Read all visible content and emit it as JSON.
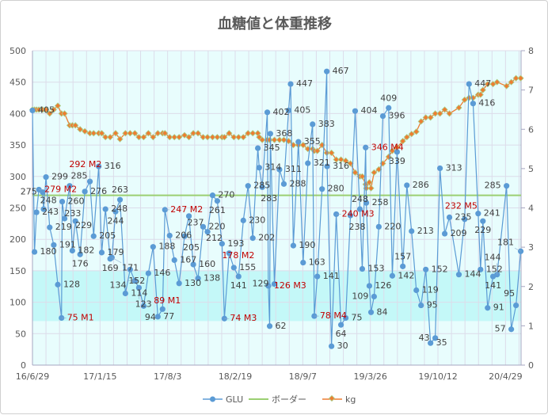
{
  "chart_data": {
    "type": "line",
    "title": "血糖値と体重推移",
    "x_range": [
      "2016-06-29",
      "2020-06-14"
    ],
    "x_ticks": [
      "16/6/29",
      "17/1/15",
      "17/8/3",
      "18/2/19",
      "18/9/7",
      "19/3/26",
      "19/10/12",
      "20/4/29"
    ],
    "x_tick_dates": [
      "2016-06-29",
      "2017-01-15",
      "2017-08-03",
      "2018-02-19",
      "2018-09-07",
      "2019-03-26",
      "2019-10-12",
      "2020-04-29"
    ],
    "y_left": {
      "range": [
        0,
        500
      ],
      "ticks": [
        "0",
        "50",
        "100",
        "150",
        "200",
        "250",
        "300",
        "350",
        "400",
        "450",
        "500"
      ]
    },
    "y_right": {
      "range": [
        0,
        8
      ],
      "ticks": [
        "0",
        "1",
        "2",
        "3",
        "4",
        "5",
        "6",
        "7",
        "8"
      ]
    },
    "grid": true,
    "legend_position": "bottom",
    "target_band": [
      70,
      150
    ],
    "colors": {
      "glu": "#5b9bd5",
      "border": "#9bcf72",
      "kg": "#ed7d31",
      "note": "#c00000",
      "plot_bg": "#e8fdfd",
      "band": "#c4f8f8"
    },
    "series": [
      {
        "name": "GLU",
        "axis": "left",
        "x": [
          "2016-06-29",
          "2016-07-05",
          "2016-07-11",
          "2016-07-18",
          "2016-07-29",
          "2016-08-01",
          "2016-08-08",
          "2016-08-19",
          "2016-08-31",
          "2016-09-12",
          "2016-09-23",
          "2016-09-25",
          "2016-10-02",
          "2016-10-17",
          "2016-10-25",
          "2016-11-03",
          "2016-11-17",
          "2016-12-01",
          "2016-12-16",
          "2016-12-27",
          "2017-01-11",
          "2017-01-20",
          "2017-01-31",
          "2017-02-14",
          "2017-02-19",
          "2017-03-02",
          "2017-03-15",
          "2017-03-31",
          "2017-04-14",
          "2017-04-28",
          "2017-05-10",
          "2017-05-24",
          "2017-06-07",
          "2017-06-21",
          "2017-07-05",
          "2017-07-19",
          "2017-07-26",
          "2017-08-09",
          "2017-08-23",
          "2017-09-06",
          "2017-09-22",
          "2017-10-05",
          "2017-10-18",
          "2017-11-01",
          "2017-11-16",
          "2017-11-29",
          "2017-12-14",
          "2017-12-28",
          "2018-01-11",
          "2018-01-18",
          "2018-02-01",
          "2018-02-15",
          "2018-03-01",
          "2018-03-15",
          "2018-03-29",
          "2018-04-12",
          "2018-04-27",
          "2018-05-01",
          "2018-05-10",
          "2018-05-25",
          "2018-05-28",
          "2018-06-01",
          "2018-06-03",
          "2018-06-15",
          "2018-06-30",
          "2018-07-13",
          "2018-07-27",
          "2018-08-02",
          "2018-08-10",
          "2018-08-25",
          "2018-09-08",
          "2018-09-22",
          "2018-10-06",
          "2018-10-11",
          "2018-10-20",
          "2018-11-03",
          "2018-11-17",
          "2018-11-18",
          "2018-12-01",
          "2018-12-15",
          "2018-12-29",
          "2019-01-12",
          "2019-01-26",
          "2019-02-09",
          "2019-02-23",
          "2019-03-02",
          "2019-03-12",
          "2019-03-14",
          "2019-03-23",
          "2019-03-28",
          "2019-04-06",
          "2019-04-20",
          "2019-05-02",
          "2019-05-19",
          "2019-05-30",
          "2019-06-13",
          "2019-06-30",
          "2019-07-12",
          "2019-07-26",
          "2019-08-09",
          "2019-08-23",
          "2019-09-06",
          "2019-09-20",
          "2019-10-04",
          "2019-10-18",
          "2019-11-01",
          "2019-11-15",
          "2019-12-13",
          "2019-12-30",
          "2020-01-12",
          "2020-01-24",
          "2020-02-08",
          "2020-02-15",
          "2020-02-22",
          "2020-03-07",
          "2020-03-23",
          "2020-04-04",
          "2020-05-02",
          "2020-05-16",
          "2020-05-30",
          "2020-06-13"
        ],
        "values": [
          405,
          180,
          243,
          279,
          275,
          248,
          299,
          219,
          191,
          128,
          75,
          260,
          233,
          285,
          182,
          229,
          176,
          276,
          292,
          205,
          316,
          179,
          248,
          169,
          171,
          244,
          263,
          114,
          152,
          134,
          123,
          94,
          146,
          188,
          77,
          89,
          247,
          206,
          167,
          130,
          205,
          237,
          160,
          138,
          220,
          212,
          270,
          261,
          193,
          74,
          178,
          155,
          141,
          230,
          285,
          202,
          345,
          314,
          283,
          402,
          126,
          62,
          368,
          129,
          311,
          288,
          405,
          447,
          190,
          355,
          163,
          321,
          383,
          78,
          141,
          280,
          467,
          316,
          30,
          240,
          64,
          75,
          238,
          404,
          248,
          153,
          346,
          258,
          126,
          84,
          109,
          220,
          396,
          409,
          142,
          339,
          157,
          286,
          213,
          119,
          95,
          152,
          35,
          43,
          313,
          209,
          235,
          144,
          232,
          447,
          416,
          241,
          152,
          229,
          91,
          141,
          144,
          285,
          57,
          95,
          181
        ],
        "labels": [
          "405",
          "180",
          "243",
          "279 M2",
          "275",
          "248",
          "299",
          "219",
          "191",
          "128",
          "75 M1",
          "260",
          "233",
          "285",
          "182",
          "229",
          "176",
          "276",
          "292 M2",
          "205",
          "316",
          "179",
          "248",
          "169",
          "171",
          "244",
          "263",
          "114",
          "152",
          "134",
          "123",
          "94",
          "146",
          "188",
          "77",
          "89 M1",
          "247 M2",
          "206",
          "167",
          "130",
          "205",
          "237",
          "160",
          "138",
          "220",
          "212",
          "270",
          "261",
          "193",
          "74 M3",
          "178 M2",
          "155",
          "141",
          "230",
          "285",
          "202",
          "345",
          "314",
          "283",
          "402",
          "126 M3",
          "62",
          "368",
          "129",
          "311",
          "288",
          "405",
          "447",
          "190",
          "355",
          "163",
          "321",
          "383",
          "78 M4",
          "141",
          "280",
          "467",
          "316",
          "30",
          "240 M3",
          "64",
          "75",
          "238",
          "404",
          "248",
          "153",
          "346 M4",
          "258",
          "126",
          "84",
          "109",
          "220",
          "396",
          "409",
          "142",
          "339",
          "157",
          "286",
          "213",
          "119",
          "95",
          "152",
          "35",
          "43",
          "313",
          "209",
          "235",
          "144",
          "232 M5",
          "447",
          "416",
          "241",
          "152",
          "229",
          "91",
          "141",
          "144",
          "285",
          "57",
          "95",
          "181"
        ]
      },
      {
        "name": "ボーダー",
        "axis": "left",
        "value": 270
      },
      {
        "name": "kg",
        "axis": "right",
        "x": [
          "2016-06-29",
          "2016-07-05",
          "2016-07-11",
          "2016-07-18",
          "2016-07-29",
          "2016-08-08",
          "2016-08-19",
          "2016-08-31",
          "2016-09-12",
          "2016-09-23",
          "2016-10-02",
          "2016-10-17",
          "2016-10-25",
          "2016-11-03",
          "2016-11-17",
          "2016-12-01",
          "2016-12-16",
          "2016-12-27",
          "2017-01-11",
          "2017-01-20",
          "2017-01-31",
          "2017-02-14",
          "2017-03-02",
          "2017-03-15",
          "2017-03-31",
          "2017-04-14",
          "2017-04-28",
          "2017-05-10",
          "2017-05-24",
          "2017-06-07",
          "2017-06-21",
          "2017-07-05",
          "2017-07-19",
          "2017-07-26",
          "2017-08-09",
          "2017-08-23",
          "2017-09-06",
          "2017-09-22",
          "2017-10-05",
          "2017-10-18",
          "2017-11-01",
          "2017-11-16",
          "2017-11-29",
          "2017-12-14",
          "2017-12-28",
          "2018-01-11",
          "2018-01-18",
          "2018-02-01",
          "2018-02-15",
          "2018-03-01",
          "2018-03-15",
          "2018-03-29",
          "2018-04-12",
          "2018-04-27",
          "2018-05-01",
          "2018-05-10",
          "2018-05-25",
          "2018-06-01",
          "2018-06-15",
          "2018-06-30",
          "2018-07-13",
          "2018-07-27",
          "2018-08-10",
          "2018-08-25",
          "2018-09-08",
          "2018-09-22",
          "2018-10-06",
          "2018-10-11",
          "2018-10-20",
          "2018-11-03",
          "2018-11-17",
          "2018-12-01",
          "2018-12-15",
          "2018-12-29",
          "2019-01-12",
          "2019-01-26",
          "2019-02-09",
          "2019-02-23",
          "2019-03-02",
          "2019-03-12",
          "2019-03-14",
          "2019-03-23",
          "2019-03-28",
          "2019-04-06",
          "2019-04-20",
          "2019-05-02",
          "2019-05-19",
          "2019-05-30",
          "2019-06-13",
          "2019-06-30",
          "2019-07-12",
          "2019-07-26",
          "2019-08-09",
          "2019-08-23",
          "2019-09-06",
          "2019-09-20",
          "2019-10-04",
          "2019-10-18",
          "2019-11-01",
          "2019-11-15",
          "2019-12-13",
          "2019-12-30",
          "2020-01-12",
          "2020-01-24",
          "2020-02-08",
          "2020-02-15",
          "2020-02-22",
          "2020-03-07",
          "2020-03-23",
          "2020-04-04",
          "2020-05-02",
          "2020-05-16",
          "2020-05-30",
          "2020-06-13"
        ],
        "values": [
          6.5,
          6.5,
          6.5,
          6.5,
          6.5,
          6.5,
          6.4,
          6.5,
          6.6,
          6.4,
          6.4,
          6.1,
          6.1,
          6.1,
          6.0,
          5.95,
          5.9,
          5.9,
          5.9,
          5.9,
          5.8,
          5.8,
          5.9,
          5.75,
          5.9,
          5.9,
          5.9,
          5.8,
          5.8,
          5.9,
          5.8,
          5.9,
          5.9,
          5.9,
          5.8,
          5.8,
          5.8,
          5.85,
          5.8,
          5.9,
          5.9,
          5.8,
          5.8,
          5.8,
          5.8,
          5.8,
          5.8,
          5.9,
          5.8,
          5.8,
          5.8,
          5.9,
          5.9,
          5.9,
          5.8,
          5.73,
          5.73,
          5.73,
          5.73,
          5.73,
          5.73,
          5.7,
          5.6,
          5.6,
          5.6,
          5.5,
          5.5,
          5.45,
          5.45,
          5.6,
          5.4,
          5.4,
          5.23,
          5.23,
          5.2,
          5.13,
          4.9,
          4.8,
          4.8,
          4.6,
          4.5,
          4.65,
          4.5,
          4.9,
          4.98,
          5.13,
          5.3,
          5.45,
          5.54,
          5.7,
          5.8,
          5.88,
          5.94,
          6.2,
          6.3,
          6.3,
          6.4,
          6.4,
          6.5,
          6.4,
          6.55,
          6.75,
          6.8,
          6.8,
          6.88,
          6.88,
          7.0,
          7.15,
          7.15,
          7.2,
          7.1,
          7.2,
          7.3,
          7.3
        ]
      }
    ]
  }
}
